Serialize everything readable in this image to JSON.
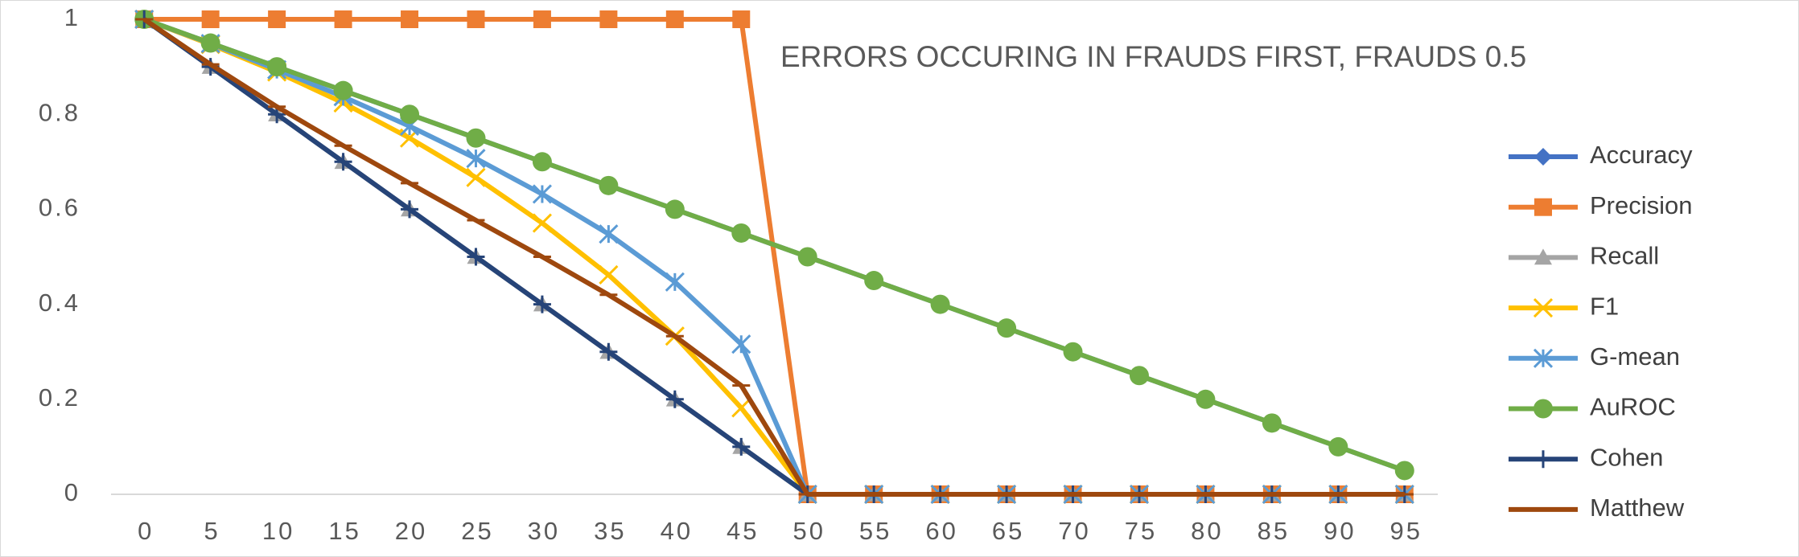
{
  "chart_data": {
    "type": "line",
    "title": "ERRORS OCCURING IN FRAUDS FIRST, FRAUDS 0.5",
    "categories": [
      "0",
      "5",
      "10",
      "15",
      "20",
      "25",
      "30",
      "35",
      "40",
      "45",
      "50",
      "55",
      "60",
      "65",
      "70",
      "75",
      "80",
      "85",
      "90",
      "95"
    ],
    "ylim": [
      0,
      1
    ],
    "yticks": [
      0,
      0.2,
      0.4,
      0.6,
      0.8,
      1
    ],
    "grid": false,
    "legend": "right",
    "series": [
      {
        "name": "Accuracy",
        "color": "#4472c4",
        "marker": "diamond",
        "values": [
          1,
          0.95,
          0.9,
          0.85,
          0.8,
          0.75,
          0.7,
          0.65,
          0.6,
          0.55,
          0.5,
          0.45,
          0.4,
          0.35,
          0.3,
          0.25,
          0.2,
          0.15,
          0.1,
          0.05
        ]
      },
      {
        "name": "Precision",
        "color": "#ed7d31",
        "marker": "square",
        "values": [
          1,
          1,
          1,
          1,
          1,
          1,
          1,
          1,
          1,
          1,
          0,
          0,
          0,
          0,
          0,
          0,
          0,
          0,
          0,
          0
        ]
      },
      {
        "name": "Recall",
        "color": "#a5a5a5",
        "marker": "triangle",
        "values": [
          1,
          0.9,
          0.8,
          0.7,
          0.6,
          0.5,
          0.4,
          0.3,
          0.2,
          0.1,
          0,
          0,
          0,
          0,
          0,
          0,
          0,
          0,
          0,
          0
        ]
      },
      {
        "name": "F1",
        "color": "#ffc000",
        "marker": "x",
        "values": [
          1,
          0.947,
          0.889,
          0.824,
          0.75,
          0.667,
          0.571,
          0.462,
          0.333,
          0.182,
          0,
          0,
          0,
          0,
          0,
          0,
          0,
          0,
          0,
          0
        ]
      },
      {
        "name": "G-mean",
        "color": "#5b9bd5",
        "marker": "star",
        "values": [
          1,
          0.949,
          0.894,
          0.837,
          0.775,
          0.707,
          0.632,
          0.548,
          0.447,
          0.316,
          0,
          0,
          0,
          0,
          0,
          0,
          0,
          0,
          0,
          0
        ]
      },
      {
        "name": "AuROC",
        "color": "#70ad47",
        "marker": "circle",
        "values": [
          1,
          0.95,
          0.9,
          0.85,
          0.8,
          0.75,
          0.7,
          0.65,
          0.6,
          0.55,
          0.5,
          0.45,
          0.4,
          0.35,
          0.3,
          0.25,
          0.2,
          0.15,
          0.1,
          0.05
        ]
      },
      {
        "name": "Cohen",
        "color": "#264478",
        "marker": "plus",
        "values": [
          1,
          0.9,
          0.8,
          0.7,
          0.6,
          0.5,
          0.4,
          0.3,
          0.2,
          0.1,
          0,
          0,
          0,
          0,
          0,
          0,
          0,
          0,
          0,
          0
        ]
      },
      {
        "name": "Matthew",
        "color": "#9e480e",
        "marker": "dash",
        "values": [
          1,
          0.905,
          0.816,
          0.734,
          0.655,
          0.577,
          0.5,
          0.42,
          0.333,
          0.229,
          0,
          0,
          0,
          0,
          0,
          0,
          0,
          0,
          0,
          0
        ]
      }
    ]
  }
}
